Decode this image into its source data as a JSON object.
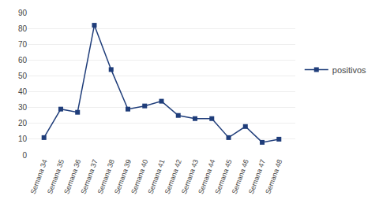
{
  "chart_data": {
    "type": "line",
    "categories": [
      "Semana 34",
      "Semana 35",
      "Semana 36",
      "Semana 37",
      "Semana 38",
      "Semana 39",
      "Semana 40",
      "Semana 41",
      "Semana 42",
      "Semana 43",
      "Semana 44",
      "Semana 45",
      "Semana 46",
      "Semana 47",
      "Semana 48"
    ],
    "series": [
      {
        "name": "positivos",
        "color": "#1f3d7a",
        "marker": "square",
        "values": [
          11,
          29,
          27,
          82,
          54,
          29,
          31,
          34,
          25,
          23,
          23,
          11,
          18,
          8,
          10
        ]
      }
    ],
    "ylim": [
      0,
      90
    ],
    "yticks": [
      0,
      10,
      20,
      30,
      40,
      50,
      60,
      70,
      80,
      90
    ],
    "grid": true,
    "legend": "right"
  }
}
